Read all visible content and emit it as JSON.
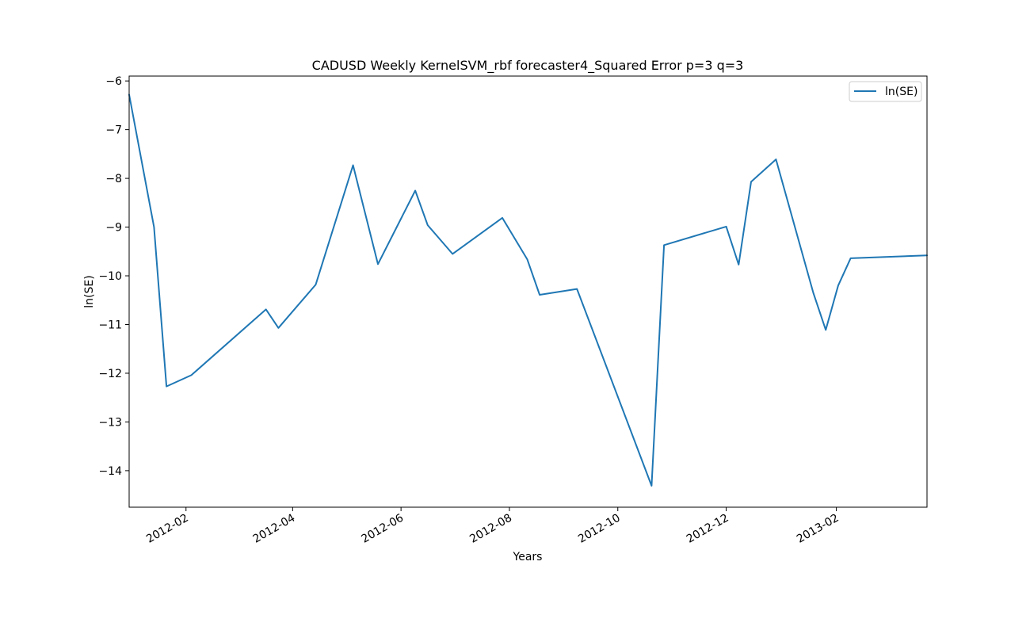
{
  "chart_data": {
    "type": "line",
    "title": "CADUSD Weekly KernelSVM_rbf forecaster4_Squared Error p=3 q=3",
    "xlabel": "Years",
    "ylabel": "ln(SE)",
    "xlim": [
      "2011-12-31",
      "2013-03-24"
    ],
    "ylim": [
      -14.75,
      -5.9
    ],
    "x_ticks": [
      "2012-02",
      "2012-04",
      "2012-06",
      "2012-08",
      "2012-10",
      "2012-12",
      "2013-02"
    ],
    "y_ticks": [
      -6,
      -7,
      -8,
      -9,
      -10,
      -11,
      -12,
      -13,
      -14
    ],
    "y_tick_labels": [
      "−6",
      "−7",
      "−8",
      "−9",
      "−10",
      "−11",
      "−12",
      "−13",
      "−14"
    ],
    "grid": false,
    "legend_position": "top-right",
    "colors": {
      "series": "#1f77b4",
      "axes": "#000000"
    },
    "series": [
      {
        "name": "ln(SE)",
        "points": [
          [
            "2011-12-31",
            -6.28
          ],
          [
            "2012-01-14",
            -9.0
          ],
          [
            "2012-01-21",
            -12.27
          ],
          [
            "2012-02-04",
            -12.04
          ],
          [
            "2012-03-17",
            -10.69
          ],
          [
            "2012-03-24",
            -11.07
          ],
          [
            "2012-04-14",
            -10.18
          ],
          [
            "2012-05-05",
            -7.73
          ],
          [
            "2012-05-19",
            -9.76
          ],
          [
            "2012-06-09",
            -8.25
          ],
          [
            "2012-06-16",
            -8.96
          ],
          [
            "2012-06-30",
            -9.55
          ],
          [
            "2012-07-28",
            -8.81
          ],
          [
            "2012-08-11",
            -9.66
          ],
          [
            "2012-08-18",
            -10.39
          ],
          [
            "2012-09-08",
            -10.27
          ],
          [
            "2012-10-20",
            -14.31
          ],
          [
            "2012-10-27",
            -9.37
          ],
          [
            "2012-12-01",
            -8.99
          ],
          [
            "2012-12-08",
            -9.77
          ],
          [
            "2012-12-15",
            -8.07
          ],
          [
            "2012-12-29",
            -7.61
          ],
          [
            "2013-01-19",
            -10.35
          ],
          [
            "2013-01-26",
            -11.11
          ],
          [
            "2013-02-02",
            -10.2
          ],
          [
            "2013-02-09",
            -9.64
          ],
          [
            "2013-03-24",
            -9.58
          ]
        ]
      }
    ]
  }
}
